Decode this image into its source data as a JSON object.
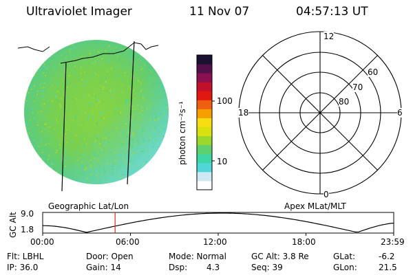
{
  "header": {
    "instrument": "Ultraviolet Imager",
    "date": "11 Nov 07",
    "time": "04:57:13 UT"
  },
  "colorbar": {
    "label": "photon cm⁻²s⁻¹",
    "ticks": [
      "100",
      "10"
    ],
    "colors": [
      "#ffffff",
      "#cfe9f2",
      "#4fd6d6",
      "#3fd6a6",
      "#5fd070",
      "#9ad82c",
      "#d8e010",
      "#f6dc10",
      "#f6a000",
      "#ee6010",
      "#e01810",
      "#c0102a",
      "#8a1050",
      "#50104a",
      "#1a1030"
    ]
  },
  "left_label": "Geographic Lat/Lon",
  "right_label": "Apex MLat/MLT",
  "polar": {
    "mlt_labels": [
      "12",
      "18",
      "6",
      "0"
    ],
    "lat_labels": [
      "60",
      "70",
      "80"
    ]
  },
  "timeline": {
    "ylabel": "GC Alt",
    "yticks": [
      "9.0",
      "1.8"
    ],
    "xticks": [
      "00:00",
      "06:00",
      "12:00",
      "18:00",
      "23:59"
    ],
    "marker_time": "04:57",
    "marker_color": "#e02020"
  },
  "info": {
    "flt": "Flt: LBHL",
    "ip": "IP: 36.0",
    "door": "Door: Open",
    "gain": "Gain: 14",
    "mode": "Mode: Normal",
    "dsp_label": "Dsp:",
    "dsp_value": "4.3",
    "gc_alt": "GC Alt: 3.8 Re",
    "seq": "Seq: 39",
    "glat_label": "GLat:",
    "glat_value": "-6.2",
    "glon_label": "GLon:",
    "glon_value": "21.5"
  }
}
